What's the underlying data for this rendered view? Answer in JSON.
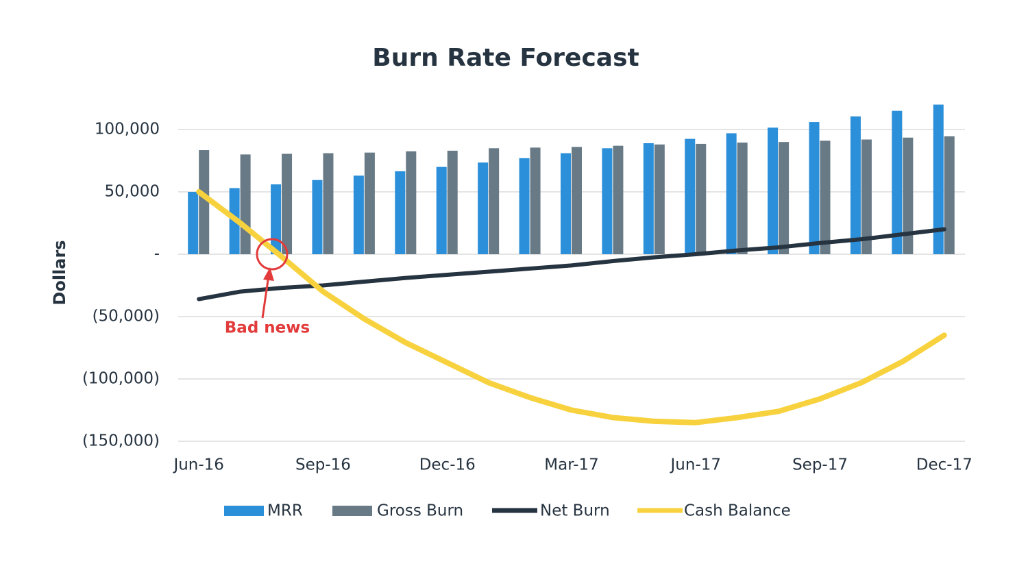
{
  "chart_data": {
    "type": "combo",
    "title": "Burn Rate Forecast",
    "y_label": "Dollars",
    "categories": [
      "Jun-16",
      null,
      null,
      "Sep-16",
      null,
      null,
      "Dec-16",
      null,
      null,
      "Mar-17",
      null,
      null,
      "Jun-17",
      null,
      null,
      "Sep-17",
      null,
      null,
      "Dec-17"
    ],
    "series": [
      {
        "name": "MRR",
        "type": "bar",
        "color": "#2b8fd9",
        "values": [
          50000,
          53000,
          56000,
          59500,
          63000,
          66500,
          70000,
          73500,
          77000,
          81000,
          85000,
          89000,
          92500,
          97000,
          101500,
          106000,
          110500,
          115000,
          120000
        ]
      },
      {
        "name": "Gross Burn",
        "type": "bar",
        "color": "#687a86",
        "values": [
          83500,
          80000,
          80500,
          81000,
          81500,
          82500,
          83000,
          85000,
          85500,
          86000,
          87000,
          88000,
          88500,
          89500,
          90000,
          91000,
          92000,
          93500,
          94500
        ]
      },
      {
        "name": "Net Burn",
        "type": "line",
        "color": "#263340",
        "values": [
          -36000,
          -30000,
          -27000,
          -25000,
          -22000,
          -19000,
          -16500,
          -14000,
          -11500,
          -9000,
          -5500,
          -2500,
          0,
          3000,
          5500,
          9000,
          12000,
          16000,
          20000
        ]
      },
      {
        "name": "Cash Balance",
        "type": "line",
        "color": "#f7d23e",
        "values": [
          50000,
          25000,
          -2000,
          -30000,
          -52000,
          -71000,
          -87000,
          -103000,
          -115000,
          -125000,
          -131000,
          -134000,
          -135000,
          -131000,
          -126000,
          -116000,
          -103000,
          -86000,
          -65000
        ]
      }
    ],
    "ylim": [
      -150000,
      125000
    ],
    "yticks": [
      {
        "value": -150000,
        "label": "(150,000)"
      },
      {
        "value": -100000,
        "label": "(100,000)"
      },
      {
        "value": -50000,
        "label": "(50,000)"
      },
      {
        "value": 0,
        "label": "-"
      },
      {
        "value": 50000,
        "label": "50,000"
      },
      {
        "value": 100000,
        "label": "100,000"
      }
    ],
    "grid": true,
    "legend": "bottom",
    "annotations": [
      {
        "text": "Bad news",
        "color": "#e23b3b"
      }
    ]
  }
}
